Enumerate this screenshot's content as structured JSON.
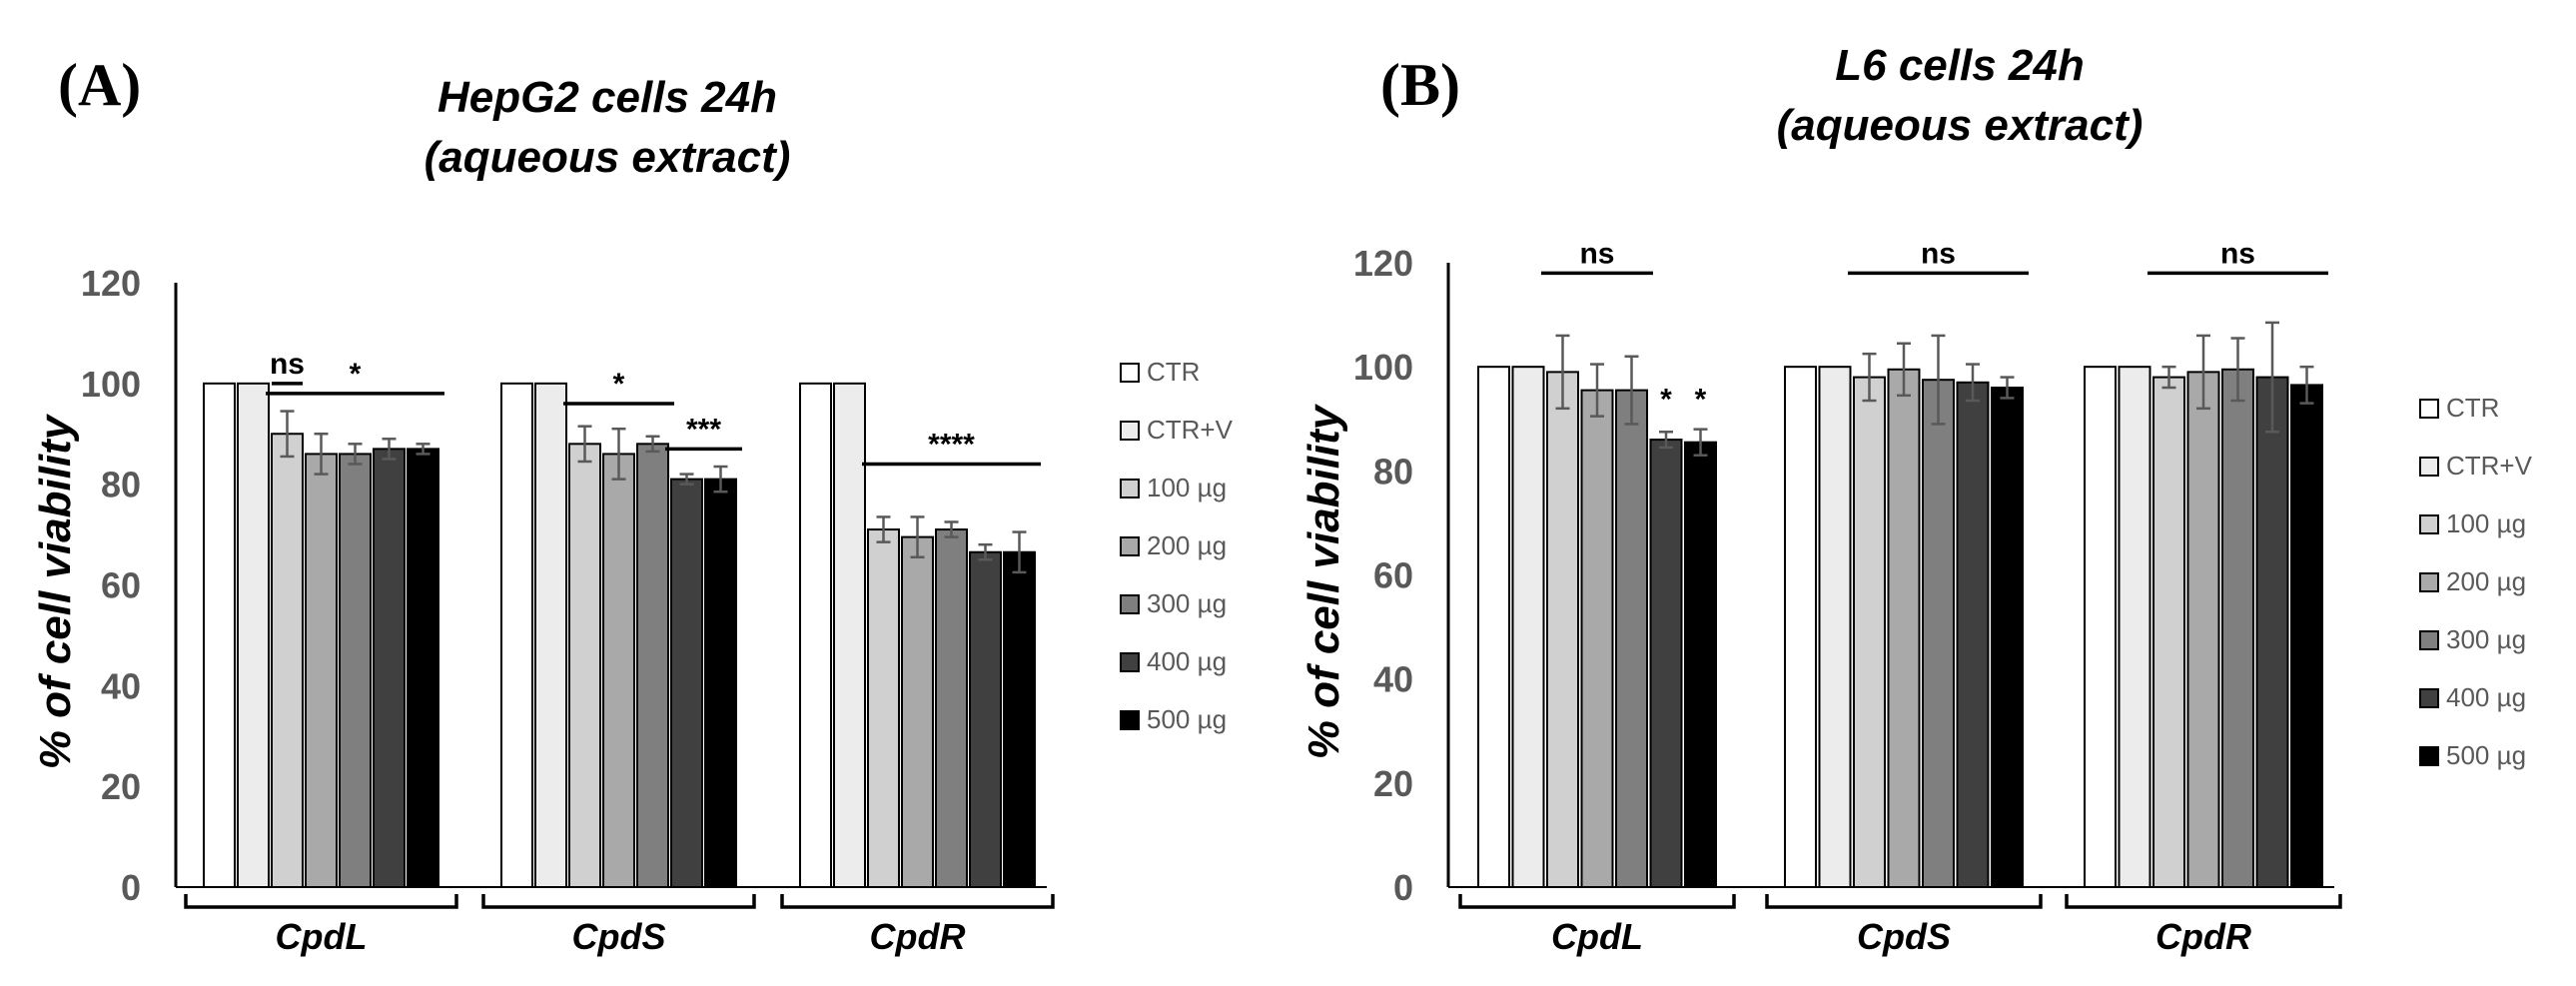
{
  "chart_data": [
    {
      "type": "bar",
      "panel_label": "(A)",
      "title": [
        "HepG2 cells 24h",
        "(aqueous extract)"
      ],
      "ylabel": "% of cell viability",
      "xlabel": "",
      "ylim": [
        0,
        120
      ],
      "yticks": [
        0,
        20,
        40,
        60,
        80,
        100,
        120
      ],
      "categories": [
        "CpdL",
        "CpdS",
        "CpdR"
      ],
      "series": [
        {
          "name": "CTR",
          "color": "#ffffff",
          "values": [
            100,
            100,
            100
          ],
          "errors": [
            0,
            0,
            0
          ]
        },
        {
          "name": "CTR+V",
          "color": "#ececec",
          "values": [
            100,
            100,
            100
          ],
          "errors": [
            0,
            0,
            0
          ]
        },
        {
          "name": "100 µg",
          "color": "#d0d0d0",
          "values": [
            90,
            88,
            71
          ],
          "errors": [
            4.5,
            3.5,
            2.5
          ]
        },
        {
          "name": "200 µg",
          "color": "#a9a9a9",
          "values": [
            86,
            86,
            69.5
          ],
          "errors": [
            4,
            5,
            4
          ]
        },
        {
          "name": "300 µg",
          "color": "#7f7f7f",
          "values": [
            86,
            88,
            71
          ],
          "errors": [
            2,
            1.5,
            1.5
          ]
        },
        {
          "name": "400 µg",
          "color": "#404040",
          "values": [
            87,
            81,
            66.5
          ],
          "errors": [
            2,
            1,
            1.5
          ]
        },
        {
          "name": "500 µg",
          "color": "#000000",
          "values": [
            87,
            81,
            66.5
          ],
          "errors": [
            1,
            2.5,
            4
          ]
        }
      ],
      "annotations": [
        {
          "text": "ns",
          "group": 0,
          "from": 2,
          "to": 2,
          "y": 100
        },
        {
          "text": "*",
          "group": 0,
          "from": 2,
          "to": 6,
          "y": 98
        },
        {
          "text": "*",
          "group": 1,
          "from": 2,
          "to": 4,
          "y": 96
        },
        {
          "text": "***",
          "group": 1,
          "from": 5,
          "to": 6,
          "y": 87
        },
        {
          "text": "****",
          "group": 2,
          "from": 2,
          "to": 6,
          "y": 84
        }
      ],
      "legend_position": "right"
    },
    {
      "type": "bar",
      "panel_label": "(B)",
      "title": [
        "L6 cells 24h",
        "(aqueous extract)"
      ],
      "ylabel": "% of cell viability",
      "xlabel": "",
      "ylim": [
        0,
        120
      ],
      "yticks": [
        0,
        20,
        40,
        60,
        80,
        100,
        120
      ],
      "categories": [
        "CpdL",
        "CpdS",
        "CpdR"
      ],
      "series": [
        {
          "name": "CTR",
          "color": "#ffffff",
          "values": [
            100,
            100,
            100
          ],
          "errors": [
            0,
            0,
            0
          ]
        },
        {
          "name": "CTR+V",
          "color": "#ececec",
          "values": [
            100,
            100,
            100
          ],
          "errors": [
            0,
            0,
            0
          ]
        },
        {
          "name": "100 µg",
          "color": "#d0d0d0",
          "values": [
            99,
            98,
            98
          ],
          "errors": [
            7,
            4.5,
            2
          ]
        },
        {
          "name": "200 µg",
          "color": "#a9a9a9",
          "values": [
            95.5,
            99.5,
            99
          ],
          "errors": [
            5,
            5,
            7
          ]
        },
        {
          "name": "300 µg",
          "color": "#7f7f7f",
          "values": [
            95.5,
            97.5,
            99.5
          ],
          "errors": [
            6.5,
            8.5,
            6
          ]
        },
        {
          "name": "400 µg",
          "color": "#404040",
          "values": [
            86,
            97,
            98
          ],
          "errors": [
            1.5,
            3.5,
            10.5
          ]
        },
        {
          "name": "500 µg",
          "color": "#000000",
          "values": [
            85.5,
            96,
            96.5
          ],
          "errors": [
            2.5,
            2,
            3.5
          ]
        }
      ],
      "annotations": [
        {
          "text": "ns",
          "group": 0,
          "from": 2,
          "to": 4,
          "y": 118
        },
        {
          "text": "*",
          "group": 0,
          "from": 5,
          "to": 5,
          "y": 90,
          "noline": true
        },
        {
          "text": "*",
          "group": 0,
          "from": 6,
          "to": 6,
          "y": 90,
          "noline": true
        },
        {
          "text": "ns",
          "group": 1,
          "from": 2,
          "to": 6,
          "y": 118
        },
        {
          "text": "ns",
          "group": 2,
          "from": 2,
          "to": 6,
          "y": 118
        }
      ],
      "legend_position": "right"
    }
  ]
}
